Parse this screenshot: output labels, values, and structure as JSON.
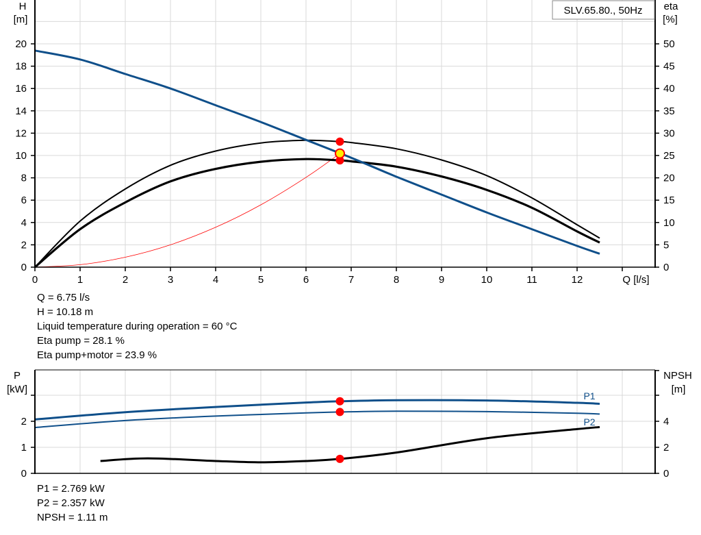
{
  "chart_data": [
    {
      "type": "line",
      "title": "SLV.65.80., 50Hz",
      "xlabel": "Q [l/s]",
      "ylabel": "H [m]",
      "ylabel_right": "eta [%]",
      "xlim": [
        0,
        13.5
      ],
      "ylim": [
        0,
        22
      ],
      "ylim_right": [
        0,
        55
      ],
      "x_ticks": [
        "0",
        "1",
        "2",
        "3",
        "4",
        "5",
        "6",
        "7",
        "8",
        "9",
        "10",
        "11",
        "12"
      ],
      "y_ticks": [
        "0",
        "2",
        "4",
        "6",
        "8",
        "10",
        "12",
        "14",
        "16",
        "18",
        "20"
      ],
      "y_ticks_right": [
        "0",
        "5",
        "10",
        "15",
        "20",
        "25",
        "30",
        "35",
        "40",
        "45",
        "50"
      ],
      "grid": true,
      "series": [
        {
          "name": "H (pump curve)",
          "axis": "left",
          "color": "#0f4f8a",
          "x": [
            0,
            1,
            2,
            3,
            4,
            5,
            6,
            7,
            8,
            9,
            10,
            11,
            12,
            12.5
          ],
          "values": [
            19.4,
            18.6,
            17.3,
            16.0,
            14.5,
            13.0,
            11.4,
            9.8,
            8.1,
            6.5,
            4.9,
            3.4,
            1.9,
            1.2
          ]
        },
        {
          "name": "Eta pump",
          "axis": "right",
          "color": "#000000",
          "x": [
            0,
            1,
            2,
            3,
            4,
            5,
            6,
            6.75,
            7,
            8,
            9,
            10,
            11,
            12,
            12.5
          ],
          "values": [
            0,
            10.3,
            17.5,
            22.8,
            26.0,
            27.8,
            28.4,
            28.1,
            27.9,
            26.5,
            24.0,
            20.5,
            15.5,
            9.5,
            6.5
          ]
        },
        {
          "name": "Eta pump+motor",
          "axis": "right",
          "color": "#000000",
          "x": [
            0,
            1,
            2,
            3,
            4,
            5,
            6,
            6.75,
            7,
            8,
            9,
            10,
            11,
            12,
            12.5
          ],
          "values": [
            0,
            8.5,
            14.5,
            19.2,
            22.0,
            23.6,
            24.2,
            23.9,
            23.7,
            22.5,
            20.3,
            17.3,
            13.3,
            8.0,
            5.5
          ]
        },
        {
          "name": "System curve",
          "axis": "left",
          "color": "#ff0000",
          "x": [
            0,
            1,
            2,
            3,
            4,
            5,
            6,
            6.75
          ],
          "values": [
            0,
            0.22,
            0.89,
            2.0,
            3.57,
            5.58,
            8.04,
            10.18
          ]
        }
      ],
      "operating_point": {
        "Q": 6.75,
        "H": 10.18,
        "eta_pump": 28.1,
        "eta_pump_motor": 23.9
      }
    },
    {
      "type": "line",
      "xlabel": "Q [l/s]",
      "ylabel": "P [kW]",
      "ylabel_right": "NPSH [m]",
      "xlim": [
        0,
        13.5
      ],
      "ylim": [
        0,
        3.9
      ],
      "ylim_right": [
        0,
        7.8
      ],
      "y_ticks": [
        "0",
        "1",
        "2"
      ],
      "y_ticks_right": [
        "0",
        "2",
        "4"
      ],
      "grid": true,
      "series": [
        {
          "name": "P1",
          "axis": "left",
          "color": "#0f4f8a",
          "x": [
            0,
            2,
            4,
            6,
            6.75,
            8,
            10,
            12,
            12.5
          ],
          "values": [
            2.07,
            2.35,
            2.55,
            2.72,
            2.769,
            2.81,
            2.8,
            2.71,
            2.67
          ]
        },
        {
          "name": "P2",
          "axis": "left",
          "color": "#0f4f8a",
          "x": [
            0,
            2,
            4,
            6,
            6.75,
            8,
            10,
            12,
            12.5
          ],
          "values": [
            1.76,
            2.03,
            2.2,
            2.32,
            2.357,
            2.39,
            2.37,
            2.31,
            2.28
          ]
        },
        {
          "name": "NPSH",
          "axis": "right",
          "color": "#000000",
          "x": [
            1.45,
            2.5,
            4,
            5,
            6,
            6.75,
            8,
            10,
            12,
            12.5
          ],
          "values": [
            0.95,
            1.15,
            0.95,
            0.85,
            0.95,
            1.11,
            1.6,
            2.7,
            3.4,
            3.55
          ]
        }
      ],
      "operating_point": {
        "Q": 6.75,
        "P1": 2.769,
        "P2": 2.357,
        "NPSH": 1.11
      }
    }
  ],
  "top_chart": {
    "legend_box": "SLV.65.80., 50Hz",
    "y_left_label_1": "H",
    "y_left_label_2": "[m]",
    "y_right_label_1": "eta",
    "y_right_label_2": "[%]",
    "x_axis_label": "Q [l/s]",
    "info_lines": [
      "Q = 6.75 l/s",
      "H = 10.18 m",
      "Liquid temperature during operation = 60 °C",
      "Eta pump = 28.1 %",
      "Eta pump+motor = 23.9 %"
    ]
  },
  "bottom_chart": {
    "y_left_label_1": "P",
    "y_left_label_2": "[kW]",
    "y_right_label_1": "NPSH",
    "y_right_label_2": "[m]",
    "curve_label_p1": "P1",
    "curve_label_p2": "P2",
    "info_lines": [
      "P1 = 2.769 kW",
      "P2 = 2.357 kW",
      "NPSH = 1.11 m"
    ]
  },
  "colors": {
    "pump_curve": "#0f4f8a",
    "efficiency": "#000000",
    "system_curve": "#ff0000",
    "operating_point": "#ff0000",
    "duty_point_fill": "#ffee00",
    "grid": "#d9d9d9"
  }
}
